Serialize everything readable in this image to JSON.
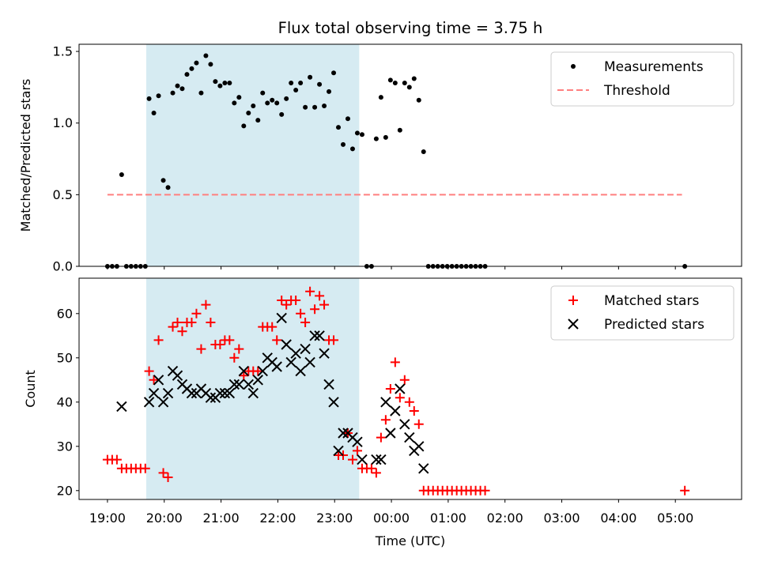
{
  "chart_data": [
    {
      "type": "scatter",
      "title": "Flux total observing time = 3.75 h",
      "xlabel": "",
      "ylabel": "Matched/Predicted stars",
      "xlim": [
        "18:30",
        "06:10"
      ],
      "ylim": [
        0,
        1.55
      ],
      "yticks": [
        "0.0",
        "0.5",
        "1.0",
        "1.5"
      ],
      "highlight_span": {
        "from": "19:41",
        "to": "23:26",
        "color": "#add8e6"
      },
      "legend": {
        "position": "top-right",
        "entries": [
          "Measurements",
          "Threshold"
        ]
      },
      "series": [
        {
          "name": "Measurements",
          "marker": "dot",
          "color": "#000000",
          "points": [
            [
              "19:00",
              0
            ],
            [
              "19:05",
              0
            ],
            [
              "19:10",
              0
            ],
            [
              "19:15",
              0.64
            ],
            [
              "19:20",
              0
            ],
            [
              "19:25",
              0
            ],
            [
              "19:30",
              0
            ],
            [
              "19:35",
              0
            ],
            [
              "19:40",
              0
            ],
            [
              "19:44",
              1.17
            ],
            [
              "19:49",
              1.07
            ],
            [
              "19:54",
              1.19
            ],
            [
              "19:59",
              0.6
            ],
            [
              "20:04",
              0.55
            ],
            [
              "20:09",
              1.21
            ],
            [
              "20:14",
              1.26
            ],
            [
              "20:19",
              1.24
            ],
            [
              "20:24",
              1.34
            ],
            [
              "20:29",
              1.38
            ],
            [
              "20:34",
              1.42
            ],
            [
              "20:39",
              1.21
            ],
            [
              "20:44",
              1.47
            ],
            [
              "20:49",
              1.41
            ],
            [
              "20:54",
              1.29
            ],
            [
              "20:59",
              1.26
            ],
            [
              "21:04",
              1.28
            ],
            [
              "21:09",
              1.28
            ],
            [
              "21:14",
              1.14
            ],
            [
              "21:19",
              1.18
            ],
            [
              "21:24",
              0.98
            ],
            [
              "21:29",
              1.07
            ],
            [
              "21:34",
              1.12
            ],
            [
              "21:39",
              1.02
            ],
            [
              "21:44",
              1.21
            ],
            [
              "21:49",
              1.14
            ],
            [
              "21:54",
              1.16
            ],
            [
              "21:59",
              1.14
            ],
            [
              "22:04",
              1.06
            ],
            [
              "22:09",
              1.17
            ],
            [
              "22:14",
              1.28
            ],
            [
              "22:19",
              1.23
            ],
            [
              "22:24",
              1.28
            ],
            [
              "22:29",
              1.11
            ],
            [
              "22:34",
              1.32
            ],
            [
              "22:39",
              1.11
            ],
            [
              "22:44",
              1.27
            ],
            [
              "22:49",
              1.12
            ],
            [
              "22:54",
              1.22
            ],
            [
              "22:59",
              1.35
            ],
            [
              "23:04",
              0.97
            ],
            [
              "23:09",
              0.85
            ],
            [
              "23:14",
              1.03
            ],
            [
              "23:19",
              0.82
            ],
            [
              "23:24",
              0.93
            ],
            [
              "23:29",
              0.92
            ],
            [
              "23:34",
              0
            ],
            [
              "23:39",
              0
            ],
            [
              "23:44",
              0.89
            ],
            [
              "23:49",
              1.18
            ],
            [
              "23:54",
              0.9
            ],
            [
              "23:59",
              1.3
            ],
            [
              "00:04",
              1.28
            ],
            [
              "00:09",
              0.95
            ],
            [
              "00:14",
              1.28
            ],
            [
              "00:19",
              1.25
            ],
            [
              "00:24",
              1.31
            ],
            [
              "00:29",
              1.16
            ],
            [
              "00:34",
              0.8
            ],
            [
              "00:39",
              0
            ],
            [
              "00:44",
              0
            ],
            [
              "00:49",
              0
            ],
            [
              "00:54",
              0
            ],
            [
              "00:59",
              0
            ],
            [
              "01:04",
              0
            ],
            [
              "01:09",
              0
            ],
            [
              "01:14",
              0
            ],
            [
              "01:19",
              0
            ],
            [
              "01:24",
              0
            ],
            [
              "01:29",
              0
            ],
            [
              "01:34",
              0
            ],
            [
              "01:39",
              0
            ],
            [
              "05:10",
              0
            ]
          ]
        },
        {
          "name": "Threshold",
          "marker": "dashed-line",
          "color": "#ff7f7f",
          "points": [
            [
              "19:00",
              0.5
            ],
            [
              "05:07",
              0.5
            ]
          ]
        }
      ]
    },
    {
      "type": "scatter",
      "title": "",
      "xlabel": "Time (UTC)",
      "ylabel": "Count",
      "xlim": [
        "18:30",
        "06:10"
      ],
      "ylim": [
        18,
        68
      ],
      "xticks": [
        "19:00",
        "20:00",
        "21:00",
        "22:00",
        "23:00",
        "00:00",
        "01:00",
        "02:00",
        "03:00",
        "04:00",
        "05:00"
      ],
      "yticks": [
        "20",
        "30",
        "40",
        "50",
        "60"
      ],
      "highlight_span": {
        "from": "19:41",
        "to": "23:26",
        "color": "#add8e6"
      },
      "legend": {
        "position": "top-right",
        "entries": [
          "Matched stars",
          "Predicted stars"
        ]
      },
      "series": [
        {
          "name": "Matched stars",
          "marker": "plus",
          "color": "#ff0000",
          "points": [
            [
              "19:00",
              27
            ],
            [
              "19:05",
              27
            ],
            [
              "19:10",
              27
            ],
            [
              "19:15",
              25
            ],
            [
              "19:20",
              25
            ],
            [
              "19:25",
              25
            ],
            [
              "19:30",
              25
            ],
            [
              "19:35",
              25
            ],
            [
              "19:40",
              25
            ],
            [
              "19:44",
              47
            ],
            [
              "19:49",
              45
            ],
            [
              "19:54",
              54
            ],
            [
              "19:59",
              24
            ],
            [
              "20:04",
              23
            ],
            [
              "20:09",
              57
            ],
            [
              "20:14",
              58
            ],
            [
              "20:19",
              56
            ],
            [
              "20:24",
              58
            ],
            [
              "20:29",
              58
            ],
            [
              "20:34",
              60
            ],
            [
              "20:39",
              52
            ],
            [
              "20:44",
              62
            ],
            [
              "20:49",
              58
            ],
            [
              "20:54",
              53
            ],
            [
              "20:59",
              53
            ],
            [
              "21:04",
              54
            ],
            [
              "21:09",
              54
            ],
            [
              "21:14",
              50
            ],
            [
              "21:19",
              52
            ],
            [
              "21:24",
              46
            ],
            [
              "21:29",
              47
            ],
            [
              "21:34",
              47
            ],
            [
              "21:39",
              47
            ],
            [
              "21:44",
              57
            ],
            [
              "21:49",
              57
            ],
            [
              "21:54",
              57
            ],
            [
              "21:59",
              54
            ],
            [
              "22:04",
              63
            ],
            [
              "22:09",
              62
            ],
            [
              "22:14",
              63
            ],
            [
              "22:19",
              63
            ],
            [
              "22:24",
              60
            ],
            [
              "22:29",
              58
            ],
            [
              "22:34",
              65
            ],
            [
              "22:39",
              61
            ],
            [
              "22:44",
              64
            ],
            [
              "22:49",
              62
            ],
            [
              "22:54",
              54
            ],
            [
              "22:59",
              54
            ],
            [
              "23:04",
              28
            ],
            [
              "23:09",
              28
            ],
            [
              "23:14",
              33
            ],
            [
              "23:19",
              27
            ],
            [
              "23:24",
              29
            ],
            [
              "23:29",
              25
            ],
            [
              "23:34",
              25
            ],
            [
              "23:39",
              25
            ],
            [
              "23:44",
              24
            ],
            [
              "23:49",
              32
            ],
            [
              "23:54",
              36
            ],
            [
              "23:59",
              43
            ],
            [
              "00:04",
              49
            ],
            [
              "00:09",
              41
            ],
            [
              "00:14",
              45
            ],
            [
              "00:19",
              40
            ],
            [
              "00:24",
              38
            ],
            [
              "00:29",
              35
            ],
            [
              "00:34",
              20
            ],
            [
              "00:39",
              20
            ],
            [
              "00:44",
              20
            ],
            [
              "00:49",
              20
            ],
            [
              "00:54",
              20
            ],
            [
              "00:59",
              20
            ],
            [
              "01:04",
              20
            ],
            [
              "01:09",
              20
            ],
            [
              "01:14",
              20
            ],
            [
              "01:19",
              20
            ],
            [
              "01:24",
              20
            ],
            [
              "01:29",
              20
            ],
            [
              "01:34",
              20
            ],
            [
              "01:39",
              20
            ],
            [
              "05:10",
              20
            ]
          ]
        },
        {
          "name": "Predicted stars",
          "marker": "x",
          "color": "#000000",
          "points": [
            [
              "19:15",
              39
            ],
            [
              "19:44",
              40
            ],
            [
              "19:49",
              42
            ],
            [
              "19:54",
              45
            ],
            [
              "19:59",
              40
            ],
            [
              "20:04",
              42
            ],
            [
              "20:09",
              47
            ],
            [
              "20:14",
              46
            ],
            [
              "20:19",
              44
            ],
            [
              "20:24",
              43
            ],
            [
              "20:29",
              42
            ],
            [
              "20:34",
              42
            ],
            [
              "20:39",
              43
            ],
            [
              "20:44",
              42
            ],
            [
              "20:49",
              41
            ],
            [
              "20:54",
              41
            ],
            [
              "20:59",
              42
            ],
            [
              "21:04",
              42
            ],
            [
              "21:09",
              42
            ],
            [
              "21:14",
              44
            ],
            [
              "21:19",
              44
            ],
            [
              "21:24",
              47
            ],
            [
              "21:29",
              44
            ],
            [
              "21:34",
              42
            ],
            [
              "21:39",
              45
            ],
            [
              "21:44",
              47
            ],
            [
              "21:49",
              50
            ],
            [
              "21:54",
              49
            ],
            [
              "21:59",
              48
            ],
            [
              "22:04",
              59
            ],
            [
              "22:09",
              53
            ],
            [
              "22:14",
              49
            ],
            [
              "22:19",
              51
            ],
            [
              "22:24",
              47
            ],
            [
              "22:29",
              52
            ],
            [
              "22:34",
              49
            ],
            [
              "22:39",
              55
            ],
            [
              "22:44",
              55
            ],
            [
              "22:49",
              51
            ],
            [
              "22:54",
              44
            ],
            [
              "22:59",
              40
            ],
            [
              "23:04",
              29
            ],
            [
              "23:09",
              33
            ],
            [
              "23:14",
              33
            ],
            [
              "23:19",
              32
            ],
            [
              "23:24",
              31
            ],
            [
              "23:29",
              27
            ],
            [
              "23:44",
              27
            ],
            [
              "23:49",
              27
            ],
            [
              "23:54",
              40
            ],
            [
              "23:59",
              33
            ],
            [
              "00:04",
              38
            ],
            [
              "00:09",
              43
            ],
            [
              "00:14",
              35
            ],
            [
              "00:19",
              32
            ],
            [
              "00:24",
              29
            ],
            [
              "00:29",
              30
            ],
            [
              "00:34",
              25
            ]
          ]
        }
      ]
    }
  ]
}
